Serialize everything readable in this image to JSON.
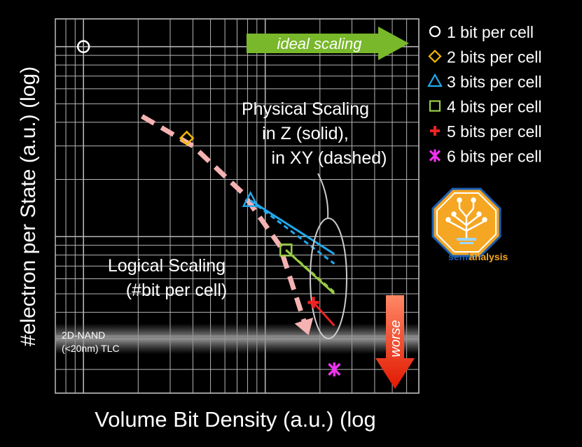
{
  "chart_data": {
    "type": "scatter",
    "title": "",
    "xlabel": "Volume Bit Density (a.u.) (log",
    "ylabel": "#electron per State (a.u.) (log)",
    "x_scale": "log",
    "y_scale": "log",
    "grid": true,
    "legend_position": "right",
    "x_tick_labels": [],
    "y_tick_labels": [],
    "series": [
      {
        "name": "1 bit per cell",
        "marker": "circle",
        "color": "#ffffff",
        "points": [
          [
            1.0,
            1.0
          ]
        ]
      },
      {
        "name": "2 bits per cell",
        "marker": "diamond",
        "color": "#f5b800",
        "points": [
          [
            3.7,
            0.33
          ]
        ]
      },
      {
        "name": "3 bits per cell",
        "marker": "triangle",
        "color": "#22aaee",
        "points": [
          [
            8.3,
            0.155
          ]
        ]
      },
      {
        "name": "4 bits per cell",
        "marker": "square",
        "color": "#99cc44",
        "points": [
          [
            13.0,
            0.085
          ]
        ]
      },
      {
        "name": "5 bits per cell",
        "marker": "plus",
        "color": "#ee2222",
        "points": [
          [
            18.4,
            0.045
          ]
        ]
      },
      {
        "name": "6 bits per cell",
        "marker": "x",
        "color": "#ee33ee",
        "points": [
          [
            24.0,
            0.02
          ]
        ]
      }
    ],
    "scaling_lines": [
      {
        "series": "3 bits per cell",
        "style": "solid",
        "from": [
          8.3,
          0.155
        ],
        "to": [
          24.0,
          0.081
        ]
      },
      {
        "series": "3 bits per cell",
        "style": "dashed",
        "from": [
          8.3,
          0.155
        ],
        "to": [
          24.0,
          0.072
        ]
      },
      {
        "series": "4 bits per cell",
        "style": "solid",
        "from": [
          13.0,
          0.085
        ],
        "to": [
          24.0,
          0.05
        ]
      },
      {
        "series": "4 bits per cell",
        "style": "dashed",
        "from": [
          13.0,
          0.085
        ],
        "to": [
          24.0,
          0.051
        ]
      },
      {
        "series": "5 bits per cell",
        "style": "solid",
        "from": [
          18.4,
          0.045
        ],
        "to": [
          24.0,
          0.034
        ]
      }
    ],
    "logical_scaling_curve": {
      "color": "#f5b2b2",
      "points": [
        [
          2.1,
          0.43
        ],
        [
          4.0,
          0.3
        ],
        [
          7.5,
          0.17
        ],
        [
          12.0,
          0.09
        ],
        [
          16.5,
          0.035
        ]
      ]
    },
    "reference_band": {
      "label_line1": "2D-NAND",
      "label_line2": "(<20nm) TLC",
      "y": 0.029
    },
    "annotations": {
      "ideal_scaling": "ideal scaling",
      "worse": "worse",
      "physical_line1": "Physical Scaling",
      "physical_line2": "in Z (solid),",
      "physical_line3": "in XY (dashed)",
      "logical_line1": "Logical Scaling",
      "logical_line2": "(#bit per cell)"
    },
    "xlim": [
      0.7,
      70
    ],
    "ylim": [
      0.015,
      1.4
    ]
  },
  "logo": {
    "text_a": "semi",
    "text_b": "analysis"
  },
  "colors": {
    "background": "#000000",
    "plot_bg": "#000000",
    "grid": "#b5b5b5",
    "ideal_arrow": "#78b82a",
    "worse_arrow": "#e82a0a",
    "logo_orange": "#f5a623",
    "logo_blue": "#1a5fb4"
  }
}
